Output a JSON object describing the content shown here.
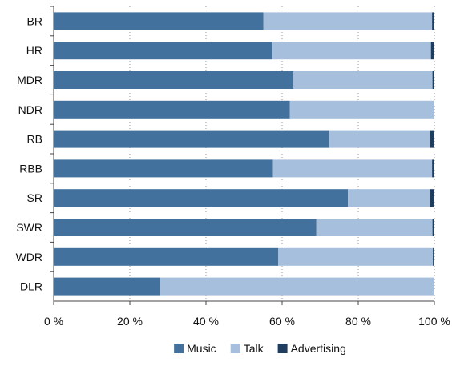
{
  "chart_data": {
    "type": "bar",
    "orientation": "horizontal",
    "stacked": true,
    "categories": [
      "BR",
      "HR",
      "MDR",
      "NDR",
      "RB",
      "RBB",
      "SR",
      "SWR",
      "WDR",
      "DLR"
    ],
    "series": [
      {
        "name": "Music",
        "color": "#41719c",
        "values": [
          55.1,
          57.5,
          63,
          62,
          72.4,
          57.6,
          77.3,
          69,
          59,
          28
        ]
      },
      {
        "name": "Talk",
        "color": "#a5bfdc",
        "values": [
          44.3,
          41.6,
          36.5,
          37.8,
          26.5,
          41.8,
          21.6,
          30.5,
          40.6,
          72
        ]
      },
      {
        "name": "Advertising",
        "color": "#1f3d5f",
        "values": [
          0.6,
          0.9,
          0.5,
          0.2,
          1.1,
          0.6,
          1.1,
          0.5,
          0.4,
          0
        ]
      }
    ],
    "xlim": [
      0,
      100
    ],
    "x_ticks": [
      "0 %",
      "20 %",
      "40 %",
      "60 %",
      "80 %",
      "100 %"
    ],
    "grid": "vertical-dotted",
    "legend": "bottom-center",
    "title": "",
    "xlabel": "",
    "ylabel": ""
  }
}
